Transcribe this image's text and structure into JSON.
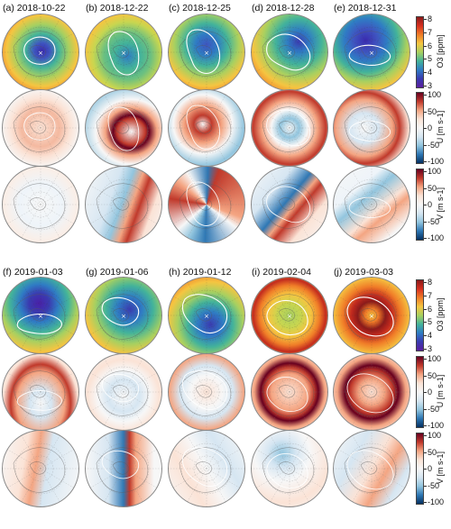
{
  "figure": {
    "panels": [
      {
        "id": "a",
        "title": "(a) 2018-10-22"
      },
      {
        "id": "b",
        "title": "(b) 2018-12-22"
      },
      {
        "id": "c",
        "title": "(c) 2018-12-25"
      },
      {
        "id": "d",
        "title": "(d) 2018-12-28"
      },
      {
        "id": "e",
        "title": "(e) 2018-12-31"
      },
      {
        "id": "f",
        "title": "(f) 2019-01-03"
      },
      {
        "id": "g",
        "title": "(g) 2019-01-06"
      },
      {
        "id": "h",
        "title": "(h) 2019-01-12"
      },
      {
        "id": "i",
        "title": "(i) 2019-02-04"
      },
      {
        "id": "j",
        "title": "(j) 2019-03-03"
      }
    ],
    "rows": [
      "O3",
      "U",
      "V"
    ],
    "colorbars": {
      "o3": {
        "label": "O3 [ppm]",
        "ticks": [
          "8",
          "7",
          "6",
          "5",
          "4",
          "3"
        ],
        "colors": [
          "#8b1a1a",
          "#d7301f",
          "#f07d28",
          "#f5c541",
          "#a8d060",
          "#43b39a",
          "#2f7cc4",
          "#3a3bb0",
          "#5a1d9e"
        ]
      },
      "u": {
        "label": "U [m s-1]",
        "ticks": [
          "100",
          "50",
          "0",
          "-50",
          "-100"
        ],
        "colors": [
          "#67001f",
          "#c0392b",
          "#f4a582",
          "#fbe3d6",
          "#f7f7f7",
          "#d6e6f2",
          "#92c5de",
          "#2e77b4",
          "#053061"
        ]
      },
      "v": {
        "label": "V [m s-1]",
        "ticks": [
          "100",
          "50",
          "0",
          "-50",
          "-100"
        ],
        "colors": [
          "#67001f",
          "#c0392b",
          "#f4a582",
          "#fbe3d6",
          "#f7f7f7",
          "#d6e6f2",
          "#92c5de",
          "#2e77b4",
          "#053061"
        ]
      }
    },
    "o3_range": [
      3,
      8
    ],
    "wind_range": [
      -100,
      100
    ]
  },
  "chart_data": {
    "type": "heatmap",
    "title": "",
    "description": "Polar stereographic maps of stratospheric O3 and zonal (U) / meridional (V) wind for ten dates during the 2018-2019 northern winter",
    "dates": [
      "2018-10-22",
      "2018-12-22",
      "2018-12-25",
      "2018-12-28",
      "2018-12-31",
      "2019-01-03",
      "2019-01-06",
      "2019-01-12",
      "2019-02-04",
      "2019-03-03"
    ],
    "variables": [
      {
        "name": "O3",
        "units": "ppm",
        "range": [
          3,
          8
        ]
      },
      {
        "name": "U",
        "units": "m s-1",
        "range": [
          -100,
          100
        ]
      },
      {
        "name": "V",
        "units": "m s-1",
        "range": [
          -100,
          100
        ]
      }
    ]
  }
}
